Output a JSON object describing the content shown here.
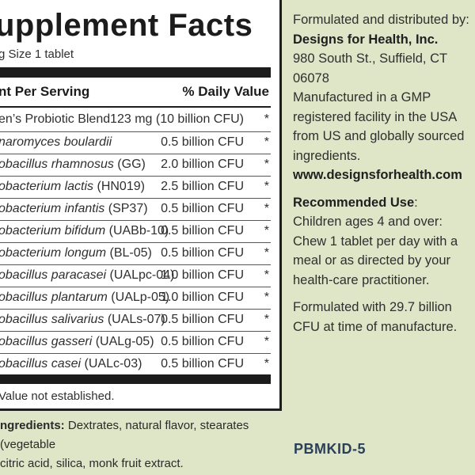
{
  "panel": {
    "title": "upplement Facts",
    "serving": "g Size 1 tablet",
    "header_left": "nt Per Serving",
    "header_right": "% Daily Value",
    "rows": [
      {
        "prefix": "en’s Probiotic Blend",
        "italic": "",
        "suffix": "",
        "amount": "123 mg (10 billion CFU)",
        "dv": "*"
      },
      {
        "prefix": "",
        "italic": "naromyces boulardii",
        "suffix": "",
        "amount": "0.5 billion CFU",
        "dv": "*"
      },
      {
        "prefix": "",
        "italic": "obacillus rhamnosus",
        "suffix": " (GG)",
        "amount": "2.0 billion CFU",
        "dv": "*"
      },
      {
        "prefix": "",
        "italic": "obacterium lactis",
        "suffix": " (HN019)",
        "amount": "2.5 billion CFU",
        "dv": "*"
      },
      {
        "prefix": "",
        "italic": "obacterium infantis",
        "suffix": " (SP37)",
        "amount": "0.5 billion CFU",
        "dv": "*"
      },
      {
        "prefix": "",
        "italic": "obacterium bifidum",
        "suffix": " (UABb-10)",
        "amount": "0.5 billion CFU",
        "dv": "*"
      },
      {
        "prefix": "",
        "italic": "obacterium longum",
        "suffix": " (BL-05)",
        "amount": "0.5 billion CFU",
        "dv": "*"
      },
      {
        "prefix": "",
        "italic": "obacillus paracasei",
        "suffix": " (UALpc-04)",
        "amount": "1.0 billion CFU",
        "dv": "*"
      },
      {
        "prefix": "",
        "italic": "obacillus plantarum",
        "suffix": " (UALp-05)",
        "amount": "1.0 billion CFU",
        "dv": "*"
      },
      {
        "prefix": "",
        "italic": "obacillus salivarius",
        "suffix": " (UALs-07)",
        "amount": "0.5 billion CFU",
        "dv": "*"
      },
      {
        "prefix": "",
        "italic": "obacillus gasseri",
        "suffix": " (UALg-05)",
        "amount": "0.5 billion CFU",
        "dv": "*"
      },
      {
        "prefix": "",
        "italic": "obacillus casei",
        "suffix": " (UALc-03)",
        "amount": "0.5 billion CFU",
        "dv": "*"
      }
    ],
    "footnote": "Value not established.",
    "other_label": "ngredients:",
    "other_text": " Dextrates, natural flavor, stearates (vegetable",
    "other_text2": " citric acid, silica, monk fruit extract."
  },
  "distributor": {
    "intro": "Formulated and distributed by:",
    "company": "Designs for Health, Inc.",
    "address": "980 South St., Suffield, CT 06078",
    "gmp": "Manufactured in a GMP registered facility in the USA from US and globally sourced ingredients.",
    "website": "www.designsforhealth.com"
  },
  "recommended": {
    "label": "Recommended Use",
    "colon": ":",
    "text": "Children ages 4 and over: Chew 1 tablet per day with a meal or as directed by your health-care practitioner."
  },
  "formulation": "Formulated with 29.7 billion CFU at time of manufacture.",
  "product_code": "PBMKID-5",
  "colors": {
    "background": "#dfe6c8",
    "panel": "#ffffff",
    "code": "#2b3f57"
  }
}
